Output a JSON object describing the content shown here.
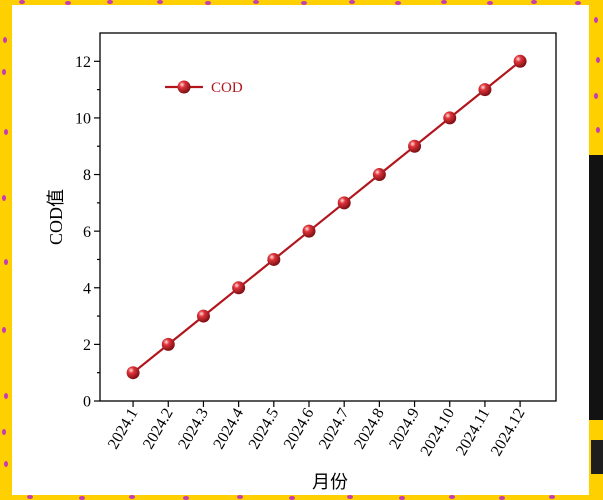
{
  "colors": {
    "frame": "#FFD000",
    "frame_dots": "#C63BB5",
    "panel": "#FFFFFF",
    "series": "#B2161C",
    "axis": "#000000"
  },
  "chart_data": {
    "type": "line",
    "categories": [
      "2024.1",
      "2024.2",
      "2024.3",
      "2024.4",
      "2024.5",
      "2024.6",
      "2024.7",
      "2024.8",
      "2024.9",
      "2024.10",
      "2024.11",
      "2024.12"
    ],
    "series": [
      {
        "name": "COD",
        "values": [
          1,
          2,
          3,
          4,
          5,
          6,
          7,
          8,
          9,
          10,
          11,
          12
        ]
      }
    ],
    "xlabel": "月份",
    "ylabel": "COD值",
    "ylim": [
      0,
      13
    ],
    "yticks": [
      0,
      2,
      4,
      6,
      8,
      10,
      12
    ],
    "grid": false,
    "legend": "top-left"
  }
}
